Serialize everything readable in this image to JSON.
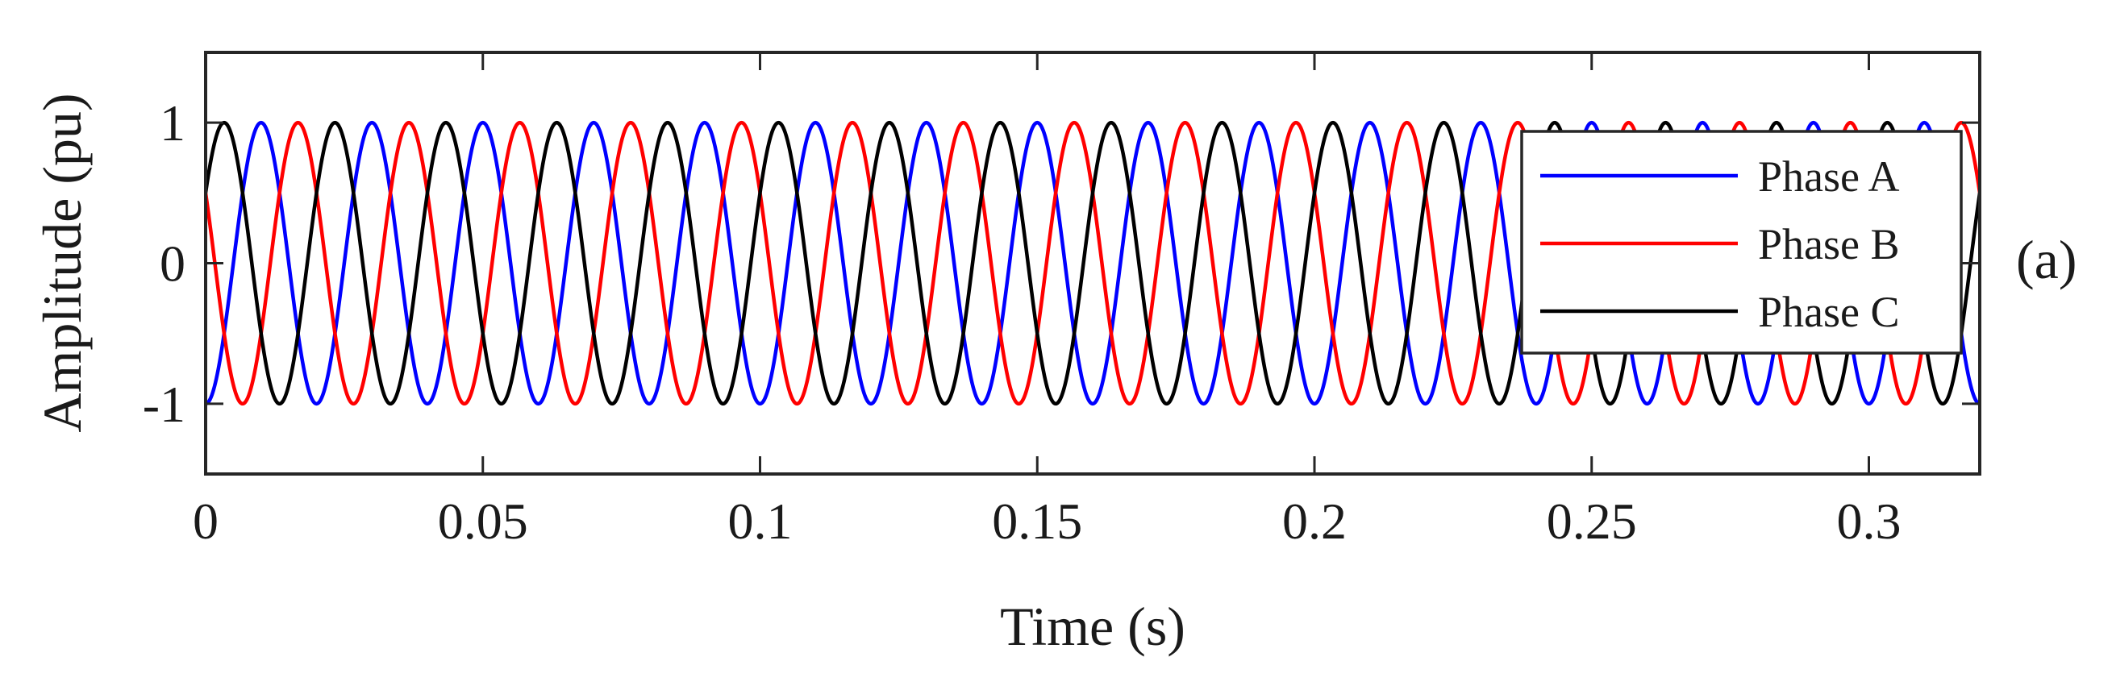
{
  "chart_data": {
    "type": "line",
    "title": "",
    "xlabel": "Time (s)",
    "ylabel": "Amplitude (pu)",
    "xlim": [
      0,
      0.32
    ],
    "ylim": [
      -1.5,
      1.5
    ],
    "xticks": [
      {
        "value": 0,
        "label": "0"
      },
      {
        "value": 0.05,
        "label": "0.05"
      },
      {
        "value": 0.1,
        "label": "0.1"
      },
      {
        "value": 0.15,
        "label": "0.15"
      },
      {
        "value": 0.2,
        "label": "0.2"
      },
      {
        "value": 0.25,
        "label": "0.25"
      },
      {
        "value": 0.3,
        "label": "0.3"
      }
    ],
    "yticks": [
      {
        "value": -1,
        "label": "-1"
      },
      {
        "value": 0,
        "label": "0"
      },
      {
        "value": 1,
        "label": "1"
      }
    ],
    "grid": false,
    "legend_position": "top-right",
    "panel_label": "(a)",
    "frequency_hz": 50,
    "amplitude_pu": 1,
    "series": [
      {
        "name": "Phase A",
        "color": "#0000ff",
        "phase_deg": -90
      },
      {
        "name": "Phase B",
        "color": "#ff0000",
        "phase_deg": 150
      },
      {
        "name": "Phase C",
        "color": "#000000",
        "phase_deg": 30
      }
    ]
  }
}
